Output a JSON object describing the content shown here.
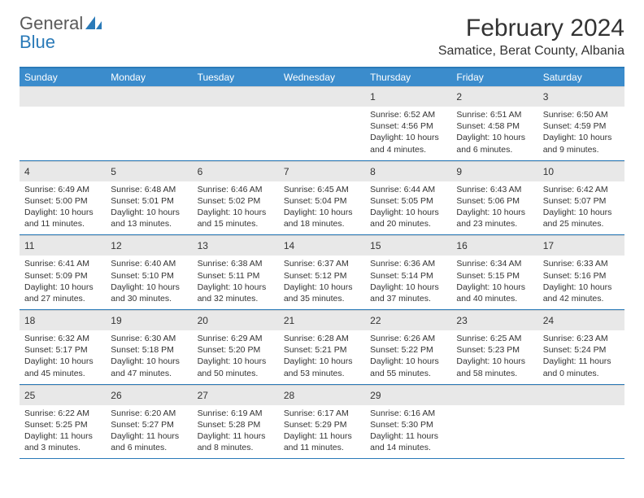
{
  "brand": {
    "part1": "General",
    "part2": "Blue"
  },
  "title": "February 2024",
  "location": "Samatice, Berat County, Albania",
  "colors": {
    "header_bar": "#3b8ccc",
    "border": "#2a7ab8",
    "daybar": "#e8e8e8",
    "text": "#333333",
    "brand_gray": "#5a5a5a",
    "brand_blue": "#2a7ab8"
  },
  "weekdays": [
    "Sunday",
    "Monday",
    "Tuesday",
    "Wednesday",
    "Thursday",
    "Friday",
    "Saturday"
  ],
  "weeks": [
    [
      null,
      null,
      null,
      null,
      {
        "n": "1",
        "sunrise": "Sunrise: 6:52 AM",
        "sunset": "Sunset: 4:56 PM",
        "daylight1": "Daylight: 10 hours",
        "daylight2": "and 4 minutes."
      },
      {
        "n": "2",
        "sunrise": "Sunrise: 6:51 AM",
        "sunset": "Sunset: 4:58 PM",
        "daylight1": "Daylight: 10 hours",
        "daylight2": "and 6 minutes."
      },
      {
        "n": "3",
        "sunrise": "Sunrise: 6:50 AM",
        "sunset": "Sunset: 4:59 PM",
        "daylight1": "Daylight: 10 hours",
        "daylight2": "and 9 minutes."
      }
    ],
    [
      {
        "n": "4",
        "sunrise": "Sunrise: 6:49 AM",
        "sunset": "Sunset: 5:00 PM",
        "daylight1": "Daylight: 10 hours",
        "daylight2": "and 11 minutes."
      },
      {
        "n": "5",
        "sunrise": "Sunrise: 6:48 AM",
        "sunset": "Sunset: 5:01 PM",
        "daylight1": "Daylight: 10 hours",
        "daylight2": "and 13 minutes."
      },
      {
        "n": "6",
        "sunrise": "Sunrise: 6:46 AM",
        "sunset": "Sunset: 5:02 PM",
        "daylight1": "Daylight: 10 hours",
        "daylight2": "and 15 minutes."
      },
      {
        "n": "7",
        "sunrise": "Sunrise: 6:45 AM",
        "sunset": "Sunset: 5:04 PM",
        "daylight1": "Daylight: 10 hours",
        "daylight2": "and 18 minutes."
      },
      {
        "n": "8",
        "sunrise": "Sunrise: 6:44 AM",
        "sunset": "Sunset: 5:05 PM",
        "daylight1": "Daylight: 10 hours",
        "daylight2": "and 20 minutes."
      },
      {
        "n": "9",
        "sunrise": "Sunrise: 6:43 AM",
        "sunset": "Sunset: 5:06 PM",
        "daylight1": "Daylight: 10 hours",
        "daylight2": "and 23 minutes."
      },
      {
        "n": "10",
        "sunrise": "Sunrise: 6:42 AM",
        "sunset": "Sunset: 5:07 PM",
        "daylight1": "Daylight: 10 hours",
        "daylight2": "and 25 minutes."
      }
    ],
    [
      {
        "n": "11",
        "sunrise": "Sunrise: 6:41 AM",
        "sunset": "Sunset: 5:09 PM",
        "daylight1": "Daylight: 10 hours",
        "daylight2": "and 27 minutes."
      },
      {
        "n": "12",
        "sunrise": "Sunrise: 6:40 AM",
        "sunset": "Sunset: 5:10 PM",
        "daylight1": "Daylight: 10 hours",
        "daylight2": "and 30 minutes."
      },
      {
        "n": "13",
        "sunrise": "Sunrise: 6:38 AM",
        "sunset": "Sunset: 5:11 PM",
        "daylight1": "Daylight: 10 hours",
        "daylight2": "and 32 minutes."
      },
      {
        "n": "14",
        "sunrise": "Sunrise: 6:37 AM",
        "sunset": "Sunset: 5:12 PM",
        "daylight1": "Daylight: 10 hours",
        "daylight2": "and 35 minutes."
      },
      {
        "n": "15",
        "sunrise": "Sunrise: 6:36 AM",
        "sunset": "Sunset: 5:14 PM",
        "daylight1": "Daylight: 10 hours",
        "daylight2": "and 37 minutes."
      },
      {
        "n": "16",
        "sunrise": "Sunrise: 6:34 AM",
        "sunset": "Sunset: 5:15 PM",
        "daylight1": "Daylight: 10 hours",
        "daylight2": "and 40 minutes."
      },
      {
        "n": "17",
        "sunrise": "Sunrise: 6:33 AM",
        "sunset": "Sunset: 5:16 PM",
        "daylight1": "Daylight: 10 hours",
        "daylight2": "and 42 minutes."
      }
    ],
    [
      {
        "n": "18",
        "sunrise": "Sunrise: 6:32 AM",
        "sunset": "Sunset: 5:17 PM",
        "daylight1": "Daylight: 10 hours",
        "daylight2": "and 45 minutes."
      },
      {
        "n": "19",
        "sunrise": "Sunrise: 6:30 AM",
        "sunset": "Sunset: 5:18 PM",
        "daylight1": "Daylight: 10 hours",
        "daylight2": "and 47 minutes."
      },
      {
        "n": "20",
        "sunrise": "Sunrise: 6:29 AM",
        "sunset": "Sunset: 5:20 PM",
        "daylight1": "Daylight: 10 hours",
        "daylight2": "and 50 minutes."
      },
      {
        "n": "21",
        "sunrise": "Sunrise: 6:28 AM",
        "sunset": "Sunset: 5:21 PM",
        "daylight1": "Daylight: 10 hours",
        "daylight2": "and 53 minutes."
      },
      {
        "n": "22",
        "sunrise": "Sunrise: 6:26 AM",
        "sunset": "Sunset: 5:22 PM",
        "daylight1": "Daylight: 10 hours",
        "daylight2": "and 55 minutes."
      },
      {
        "n": "23",
        "sunrise": "Sunrise: 6:25 AM",
        "sunset": "Sunset: 5:23 PM",
        "daylight1": "Daylight: 10 hours",
        "daylight2": "and 58 minutes."
      },
      {
        "n": "24",
        "sunrise": "Sunrise: 6:23 AM",
        "sunset": "Sunset: 5:24 PM",
        "daylight1": "Daylight: 11 hours",
        "daylight2": "and 0 minutes."
      }
    ],
    [
      {
        "n": "25",
        "sunrise": "Sunrise: 6:22 AM",
        "sunset": "Sunset: 5:25 PM",
        "daylight1": "Daylight: 11 hours",
        "daylight2": "and 3 minutes."
      },
      {
        "n": "26",
        "sunrise": "Sunrise: 6:20 AM",
        "sunset": "Sunset: 5:27 PM",
        "daylight1": "Daylight: 11 hours",
        "daylight2": "and 6 minutes."
      },
      {
        "n": "27",
        "sunrise": "Sunrise: 6:19 AM",
        "sunset": "Sunset: 5:28 PM",
        "daylight1": "Daylight: 11 hours",
        "daylight2": "and 8 minutes."
      },
      {
        "n": "28",
        "sunrise": "Sunrise: 6:17 AM",
        "sunset": "Sunset: 5:29 PM",
        "daylight1": "Daylight: 11 hours",
        "daylight2": "and 11 minutes."
      },
      {
        "n": "29",
        "sunrise": "Sunrise: 6:16 AM",
        "sunset": "Sunset: 5:30 PM",
        "daylight1": "Daylight: 11 hours",
        "daylight2": "and 14 minutes."
      },
      null,
      null
    ]
  ]
}
